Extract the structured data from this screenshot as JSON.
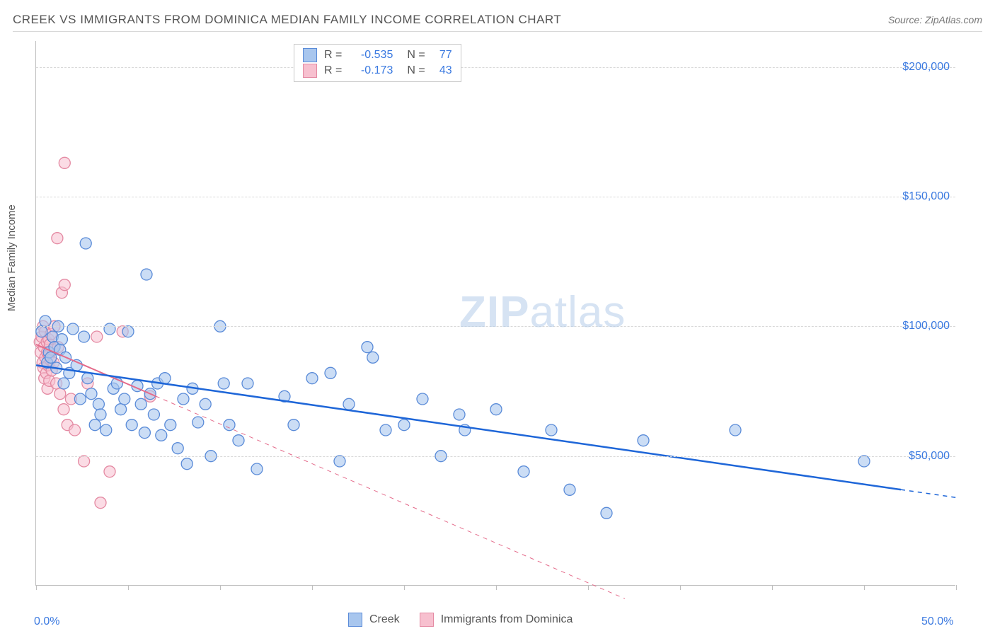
{
  "header": {
    "title": "CREEK VS IMMIGRANTS FROM DOMINICA MEDIAN FAMILY INCOME CORRELATION CHART",
    "source_label": "Source:",
    "source_name": "ZipAtlas.com"
  },
  "axes": {
    "ylabel": "Median Family Income",
    "xlim": [
      0,
      50
    ],
    "ylim": [
      0,
      210000
    ],
    "x_ticks": [
      0,
      5,
      10,
      15,
      20,
      25,
      30,
      35,
      40,
      45,
      50
    ],
    "x_tick_labels": {
      "0": "0.0%",
      "50": "50.0%"
    },
    "y_gridlines": [
      50000,
      100000,
      150000,
      200000
    ],
    "y_tick_labels": {
      "50000": "$50,000",
      "100000": "$100,000",
      "150000": "$150,000",
      "200000": "$200,000"
    },
    "grid_color": "#d8d8d8",
    "axis_color": "#bfbfbf",
    "label_color": "#3a79e0"
  },
  "legend_top": {
    "rows": [
      {
        "swatch": "blue",
        "r": "-0.535",
        "n": "77"
      },
      {
        "swatch": "pink",
        "r": "-0.173",
        "n": "43"
      }
    ]
  },
  "legend_bottom": {
    "items": [
      {
        "swatch": "blue",
        "label": "Creek"
      },
      {
        "swatch": "pink",
        "label": "Immigrants from Dominica"
      }
    ]
  },
  "watermark": {
    "bold": "ZIP",
    "light": "atlas"
  },
  "series": {
    "blue": {
      "color_fill": "#a8c6ee",
      "color_stroke": "#5a8bd8",
      "marker_r": 8,
      "fill_opacity": 0.6,
      "trend": {
        "x1": 0,
        "y1": 85000,
        "x2": 50,
        "y2": 34000,
        "solid_until_x": 47,
        "color": "#1e66d8",
        "width": 2.5
      },
      "points": [
        [
          0.3,
          98000
        ],
        [
          0.5,
          102000
        ],
        [
          0.6,
          86000
        ],
        [
          0.7,
          90000
        ],
        [
          0.8,
          88000
        ],
        [
          0.9,
          96000
        ],
        [
          1.0,
          92000
        ],
        [
          1.1,
          84000
        ],
        [
          1.2,
          100000
        ],
        [
          1.3,
          91000
        ],
        [
          1.4,
          95000
        ],
        [
          1.5,
          78000
        ],
        [
          1.6,
          88000
        ],
        [
          1.8,
          82000
        ],
        [
          2.0,
          99000
        ],
        [
          2.2,
          85000
        ],
        [
          2.4,
          72000
        ],
        [
          2.6,
          96000
        ],
        [
          2.7,
          132000
        ],
        [
          2.8,
          80000
        ],
        [
          3.0,
          74000
        ],
        [
          3.2,
          62000
        ],
        [
          3.4,
          70000
        ],
        [
          3.5,
          66000
        ],
        [
          3.8,
          60000
        ],
        [
          4.0,
          99000
        ],
        [
          4.2,
          76000
        ],
        [
          4.4,
          78000
        ],
        [
          4.6,
          68000
        ],
        [
          4.8,
          72000
        ],
        [
          5.0,
          98000
        ],
        [
          5.2,
          62000
        ],
        [
          5.5,
          77000
        ],
        [
          5.7,
          70000
        ],
        [
          5.9,
          59000
        ],
        [
          6.0,
          120000
        ],
        [
          6.2,
          74000
        ],
        [
          6.4,
          66000
        ],
        [
          6.6,
          78000
        ],
        [
          6.8,
          58000
        ],
        [
          7.0,
          80000
        ],
        [
          7.3,
          62000
        ],
        [
          7.7,
          53000
        ],
        [
          8.0,
          72000
        ],
        [
          8.2,
          47000
        ],
        [
          8.5,
          76000
        ],
        [
          8.8,
          63000
        ],
        [
          9.2,
          70000
        ],
        [
          9.5,
          50000
        ],
        [
          10.0,
          100000
        ],
        [
          10.2,
          78000
        ],
        [
          10.5,
          62000
        ],
        [
          11.0,
          56000
        ],
        [
          11.5,
          78000
        ],
        [
          12.0,
          45000
        ],
        [
          13.5,
          73000
        ],
        [
          14.0,
          62000
        ],
        [
          15.0,
          80000
        ],
        [
          16.0,
          82000
        ],
        [
          16.5,
          48000
        ],
        [
          17.0,
          70000
        ],
        [
          18.0,
          92000
        ],
        [
          18.3,
          88000
        ],
        [
          19.0,
          60000
        ],
        [
          20.0,
          62000
        ],
        [
          21.0,
          72000
        ],
        [
          22.0,
          50000
        ],
        [
          23.0,
          66000
        ],
        [
          23.3,
          60000
        ],
        [
          25.0,
          68000
        ],
        [
          26.5,
          44000
        ],
        [
          28.0,
          60000
        ],
        [
          29.0,
          37000
        ],
        [
          31.0,
          28000
        ],
        [
          33.0,
          56000
        ],
        [
          38.0,
          60000
        ],
        [
          45.0,
          48000
        ]
      ]
    },
    "pink": {
      "color_fill": "#f7c0cf",
      "color_stroke": "#e489a2",
      "marker_r": 8,
      "fill_opacity": 0.55,
      "trend": {
        "x1": 0,
        "y1": 93000,
        "x2": 32,
        "y2": -5000,
        "solid_until_x": 6.5,
        "color": "#e46a8a",
        "width": 2
      },
      "points": [
        [
          0.2,
          94000
        ],
        [
          0.25,
          90000
        ],
        [
          0.3,
          96000
        ],
        [
          0.35,
          86000
        ],
        [
          0.38,
          100000
        ],
        [
          0.4,
          84000
        ],
        [
          0.42,
          92000
        ],
        [
          0.45,
          80000
        ],
        [
          0.48,
          98000
        ],
        [
          0.5,
          88000
        ],
        [
          0.55,
          82000
        ],
        [
          0.58,
          94000
        ],
        [
          0.6,
          90000
        ],
        [
          0.62,
          76000
        ],
        [
          0.65,
          85000
        ],
        [
          0.68,
          95000
        ],
        [
          0.7,
          89000
        ],
        [
          0.72,
          79000
        ],
        [
          0.75,
          93000
        ],
        [
          0.78,
          87000
        ],
        [
          0.8,
          97000
        ],
        [
          0.85,
          83000
        ],
        [
          0.9,
          91000
        ],
        [
          0.95,
          86000
        ],
        [
          1.0,
          100000
        ],
        [
          1.1,
          78000
        ],
        [
          1.15,
          134000
        ],
        [
          1.2,
          92000
        ],
        [
          1.3,
          74000
        ],
        [
          1.4,
          113000
        ],
        [
          1.5,
          68000
        ],
        [
          1.55,
          116000
        ],
        [
          1.55,
          163000
        ],
        [
          1.7,
          62000
        ],
        [
          1.9,
          72000
        ],
        [
          2.1,
          60000
        ],
        [
          2.6,
          48000
        ],
        [
          2.8,
          78000
        ],
        [
          3.3,
          96000
        ],
        [
          3.5,
          32000
        ],
        [
          4.0,
          44000
        ],
        [
          4.7,
          98000
        ],
        [
          6.2,
          73000
        ]
      ]
    }
  }
}
